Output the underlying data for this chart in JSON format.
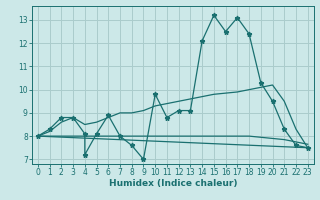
{
  "title": "",
  "xlabel": "Humidex (Indice chaleur)",
  "bg_color": "#cce8e8",
  "grid_color": "#aacccc",
  "line_color": "#1a7070",
  "xlim": [
    -0.5,
    23.5
  ],
  "ylim": [
    6.8,
    13.6
  ],
  "xticks": [
    0,
    1,
    2,
    3,
    4,
    5,
    6,
    7,
    8,
    9,
    10,
    11,
    12,
    13,
    14,
    15,
    16,
    17,
    18,
    19,
    20,
    21,
    22,
    23
  ],
  "yticks": [
    7,
    8,
    9,
    10,
    11,
    12,
    13
  ],
  "line1_x": [
    0,
    1,
    2,
    3,
    4,
    4,
    5,
    6,
    7,
    8,
    9,
    10,
    11,
    12,
    13,
    14,
    15,
    16,
    17,
    18,
    19,
    20,
    21,
    22,
    23
  ],
  "line1_y": [
    8.0,
    8.3,
    8.8,
    8.8,
    8.1,
    7.2,
    8.1,
    8.9,
    8.0,
    7.6,
    7.0,
    9.8,
    8.8,
    9.1,
    9.1,
    12.1,
    13.2,
    12.5,
    13.1,
    12.4,
    10.3,
    9.5,
    8.3,
    7.6,
    7.5
  ],
  "line2_x": [
    0,
    1,
    2,
    3,
    4,
    5,
    6,
    7,
    8,
    9,
    10,
    11,
    12,
    13,
    14,
    15,
    16,
    17,
    18,
    19,
    20,
    21,
    22,
    23
  ],
  "line2_y": [
    8.0,
    8.2,
    8.6,
    8.8,
    8.5,
    8.6,
    8.8,
    9.0,
    9.0,
    9.1,
    9.3,
    9.4,
    9.5,
    9.6,
    9.7,
    9.8,
    9.85,
    9.9,
    10.0,
    10.1,
    10.2,
    9.5,
    8.3,
    7.5
  ],
  "line3_x": [
    0,
    1,
    2,
    3,
    4,
    5,
    6,
    7,
    8,
    9,
    10,
    11,
    12,
    13,
    14,
    15,
    16,
    17,
    18,
    19,
    20,
    21,
    22,
    23
  ],
  "line3_y": [
    8.0,
    8.0,
    8.0,
    8.0,
    8.0,
    8.0,
    8.0,
    8.0,
    8.0,
    8.0,
    8.0,
    8.0,
    8.0,
    8.0,
    8.0,
    8.0,
    8.0,
    8.0,
    8.0,
    7.95,
    7.9,
    7.85,
    7.75,
    7.65
  ],
  "line4_x": [
    0,
    23
  ],
  "line4_y": [
    8.0,
    7.5
  ]
}
